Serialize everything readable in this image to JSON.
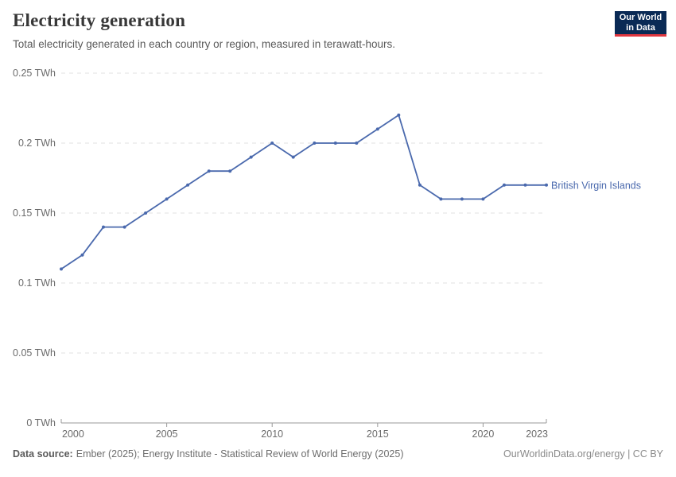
{
  "header": {
    "title": "Electricity generation",
    "subtitle": "Total electricity generated in each country or region, measured in terawatt-hours.",
    "logo": {
      "line1": "Our World",
      "line2": "in Data"
    }
  },
  "chart_data": {
    "type": "line",
    "title": "Electricity generation",
    "ylabel": "TWh",
    "xlim": [
      2000,
      2023
    ],
    "ylim": [
      0,
      0.25
    ],
    "grid": "horizontal-dashed",
    "legend_position": "end-of-line-label",
    "x": [
      2000,
      2001,
      2002,
      2003,
      2004,
      2005,
      2006,
      2007,
      2008,
      2009,
      2010,
      2011,
      2012,
      2013,
      2014,
      2015,
      2016,
      2017,
      2018,
      2019,
      2020,
      2021,
      2022,
      2023
    ],
    "series": [
      {
        "name": "British Virgin Islands",
        "values": [
          0.11,
          0.12,
          0.14,
          0.14,
          0.15,
          0.16,
          0.17,
          0.18,
          0.18,
          0.19,
          0.2,
          0.19,
          0.2,
          0.2,
          0.2,
          0.21,
          0.22,
          0.17,
          0.16,
          0.16,
          0.16,
          0.17,
          0.17,
          0.17
        ]
      }
    ],
    "x_ticks": [
      2000,
      2005,
      2010,
      2015,
      2020,
      2023
    ],
    "y_ticks": [
      {
        "value": 0,
        "label": "0 TWh"
      },
      {
        "value": 0.05,
        "label": "0.05 TWh"
      },
      {
        "value": 0.1,
        "label": "0.1 TWh"
      },
      {
        "value": 0.15,
        "label": "0.15 TWh"
      },
      {
        "value": 0.2,
        "label": "0.2 TWh"
      },
      {
        "value": 0.25,
        "label": "0.25 TWh"
      }
    ]
  },
  "colors": {
    "line": "#4a69ad",
    "grid": "#e2e2e2",
    "axis": "#9a9a9a",
    "tick_text": "#6b6b6b",
    "logo_bg": "#0a2a55",
    "logo_stripe": "#e0363f"
  },
  "footer": {
    "data_source_label": "Data source:",
    "data_source_text": "Ember (2025); Energy Institute - Statistical Review of World Energy (2025)",
    "credit": "OurWorldinData.org/energy | CC BY"
  }
}
